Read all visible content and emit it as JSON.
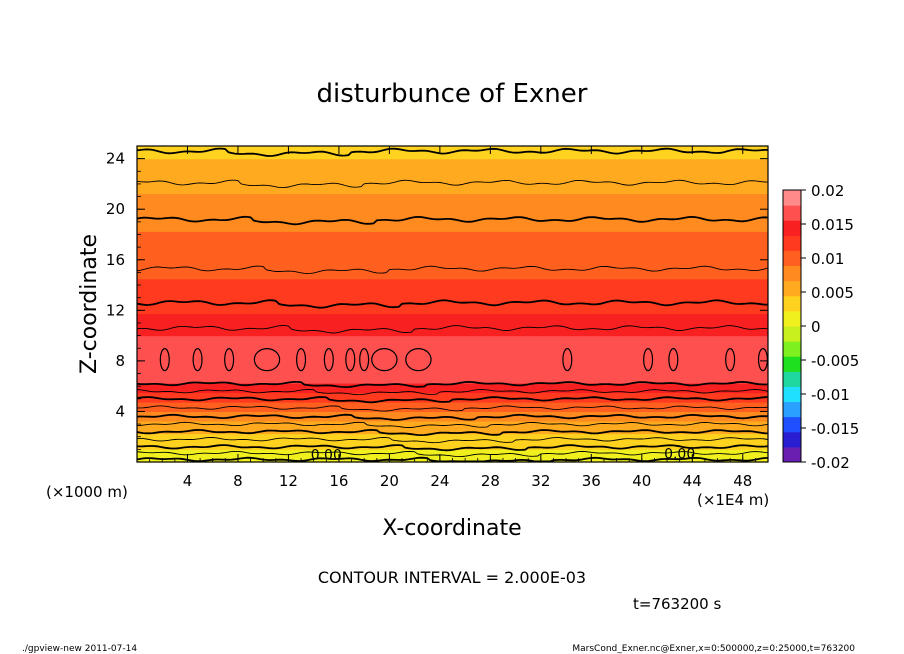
{
  "chart_data": {
    "type": "heatmap",
    "title": "disturbunce of Exner",
    "xlabel": "X-coordinate",
    "ylabel": "Z-coordinate",
    "x_unit": "(×1E4 m)",
    "y_unit": "(×1000 m)",
    "xlim": [
      0,
      50
    ],
    "ylim": [
      0,
      25
    ],
    "x_ticks": [
      "4",
      "8",
      "12",
      "16",
      "20",
      "24",
      "28",
      "32",
      "36",
      "40",
      "44",
      "48"
    ],
    "y_ticks": [
      "4",
      "8",
      "12",
      "16",
      "20",
      "24"
    ],
    "contour_interval_text": "CONTOUR INTERVAL = 2.000E-03",
    "contour_labels": [
      "0.00",
      "0.00"
    ],
    "colorbar": {
      "min": -0.02,
      "max": 0.02,
      "ticks": [
        "0.02",
        "0.015",
        "0.01",
        "0.005",
        "0",
        "-0.005",
        "-0.01",
        "-0.015",
        "-0.02"
      ]
    },
    "profile": {
      "z": [
        0,
        0.5,
        1,
        1.5,
        2,
        3,
        4,
        5,
        6,
        7,
        8,
        9,
        10,
        11,
        12,
        14,
        16,
        18,
        20,
        22,
        24,
        25
      ],
      "value": [
        0.0,
        0.001,
        0.002,
        0.003,
        0.004,
        0.006,
        0.009,
        0.012,
        0.015,
        0.0165,
        0.017,
        0.0165,
        0.0155,
        0.0145,
        0.013,
        0.0115,
        0.01,
        0.009,
        0.008,
        0.006,
        0.0045,
        0.004
      ]
    }
  },
  "time_label": "t=763200 s",
  "footer": {
    "left": "./gpview-new   2011-07-14",
    "right": "MarsCond_Exner.nc@Exner,x=0:500000,z=0:25000,t=763200"
  },
  "colors": {
    "palette": [
      "#6a1fb0",
      "#2a1fd0",
      "#1f4fff",
      "#2aa0ff",
      "#1fe0ff",
      "#1fd8a0",
      "#1fe01f",
      "#7ff01f",
      "#c8f01f",
      "#f0f01f",
      "#ffd21f",
      "#ffaa1f",
      "#ff8a1f",
      "#ff601f",
      "#ff3a1f",
      "#f82020",
      "#ff5050",
      "#ff8a8a"
    ]
  }
}
